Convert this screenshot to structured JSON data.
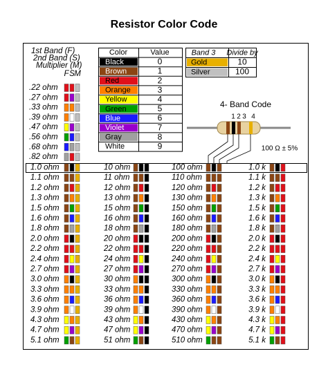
{
  "title": "Resistor Color Code",
  "legend_header": [
    "1st Band (F)",
    "2nd Band (S)",
    "Multiplier (M)"
  ],
  "band_letters": [
    "F",
    "S",
    "M"
  ],
  "small_values": {
    "multiplier_color": "#c0c0c0",
    "rows": [
      {
        "label": ".22 ohm",
        "colors": [
          "#e0101a",
          "#e0101a"
        ]
      },
      {
        "label": ".27 ohm",
        "colors": [
          "#e0101a",
          "#9900cc"
        ]
      },
      {
        "label": ".33 ohm",
        "colors": [
          "#ff8000",
          "#ff8000"
        ]
      },
      {
        "label": ".39 ohm",
        "colors": [
          "#ff8000",
          "#ffffff"
        ]
      },
      {
        "label": ".47 ohm",
        "colors": [
          "#ffff00",
          "#9900cc"
        ]
      },
      {
        "label": ".56 ohm",
        "colors": [
          "#00a000",
          "#1a1aff"
        ]
      },
      {
        "label": ".68 ohm",
        "colors": [
          "#1a1aff",
          "#a0a0a0"
        ]
      },
      {
        "label": ".82 ohm",
        "colors": [
          "#a0a0a0",
          "#e0101a"
        ]
      }
    ]
  },
  "color_table": {
    "headers": [
      "Color",
      "Value"
    ],
    "rows": [
      {
        "name": "Black",
        "value": 0,
        "color": "#000000",
        "text_color": "#ffffff"
      },
      {
        "name": "Brown",
        "value": 1,
        "color": "#8b4513",
        "text_color": "#ffffff"
      },
      {
        "name": "Red",
        "value": 2,
        "color": "#e0101a",
        "text_color": "#000000"
      },
      {
        "name": "Orange",
        "value": 3,
        "color": "#ff8000",
        "text_color": "#000000"
      },
      {
        "name": "Yellow",
        "value": 4,
        "color": "#ffff00",
        "text_color": "#000000"
      },
      {
        "name": "Green",
        "value": 5,
        "color": "#00a000",
        "text_color": "#000000"
      },
      {
        "name": "Blue",
        "value": 6,
        "color": "#1a1aff",
        "text_color": "#ffffff"
      },
      {
        "name": "Violet",
        "value": 7,
        "color": "#9900cc",
        "text_color": "#ffffff"
      },
      {
        "name": "Gray",
        "value": 8,
        "color": "#a0a0a0",
        "text_color": "#000000"
      },
      {
        "name": "White",
        "value": 9,
        "color": "#ffffff",
        "text_color": "#000000"
      }
    ]
  },
  "band3_table": {
    "headers": [
      "Band 3",
      "Divide by"
    ],
    "rows": [
      {
        "name": "Gold",
        "value": 10,
        "color": "#e8b000"
      },
      {
        "name": "Silver",
        "value": 100,
        "color": "#c0c0c0"
      }
    ]
  },
  "diagram": {
    "title": "4- Band Code",
    "band_numbers": [
      1,
      2,
      3,
      4
    ],
    "example": "100 Ω ± 5%"
  },
  "main_table": {
    "digit_colors": [
      [
        "#8b4513",
        "#000000"
      ],
      [
        "#8b4513",
        "#8b4513"
      ],
      [
        "#8b4513",
        "#e0101a"
      ],
      [
        "#8b4513",
        "#ff8000"
      ],
      [
        "#8b4513",
        "#00a000"
      ],
      [
        "#8b4513",
        "#1a1aff"
      ],
      [
        "#8b4513",
        "#a0a0a0"
      ],
      [
        "#e0101a",
        "#000000"
      ],
      [
        "#e0101a",
        "#e0101a"
      ],
      [
        "#e0101a",
        "#ffff00"
      ],
      [
        "#e0101a",
        "#9900cc"
      ],
      [
        "#ff8000",
        "#000000"
      ],
      [
        "#ff8000",
        "#ff8000"
      ],
      [
        "#ff8000",
        "#1a1aff"
      ],
      [
        "#ff8000",
        "#ffffff"
      ],
      [
        "#ffff00",
        "#ff8000"
      ],
      [
        "#ffff00",
        "#9900cc"
      ],
      [
        "#00a000",
        "#8b4513"
      ]
    ],
    "columns": [
      {
        "multiplier_color": "#e8b000",
        "labels": [
          "1.0 ohm",
          "1.1 ohm",
          "1.2 ohm",
          "1.3 ohm",
          "1.5 ohm",
          "1.6 ohm",
          "1.8 ohm",
          "2.0 ohm",
          "2.2 ohm",
          "2.4 ohm",
          "2.7 ohm",
          "3.0 ohm",
          "3.3 ohm",
          "3.6 ohm",
          "3.9 ohm",
          "4.3 ohm",
          "4.7 ohm",
          "5.1 ohm"
        ]
      },
      {
        "multiplier_color": "#000000",
        "labels": [
          "10 ohm",
          "11 ohm",
          "12 ohm",
          "13 ohm",
          "15 ohm",
          "16 ohm",
          "18 ohm",
          "20 ohm",
          "22 ohm",
          "24 ohm",
          "27 ohm",
          "30 ohm",
          "33 ohm",
          "36 ohm",
          "39 ohm",
          "43 ohm",
          "47 ohm",
          "51 ohm"
        ]
      },
      {
        "multiplier_color": "#8b4513",
        "labels": [
          "100 ohm",
          "110 ohm",
          "120 ohm",
          "130 ohm",
          "150 ohm",
          "160 ohm",
          "180 ohm",
          "200 ohm",
          "220 ohm",
          "240 ohm",
          "270 ohm",
          "300 ohm",
          "330 ohm",
          "360 ohm",
          "390 ohm",
          "430 ohm",
          "470 ohm",
          "510 ohm"
        ]
      },
      {
        "multiplier_color": "#e0101a",
        "labels": [
          "1.0 k",
          "1.1 k",
          "1.2 k",
          "1.3 k",
          "1.5 k",
          "1.6 k",
          "1.8 k",
          "2.0 k",
          "2.2 k",
          "2.4 k",
          "2.7 k",
          "3.0 k",
          "3.3 k",
          "3.6 k",
          "3.9 k",
          "4.3 k",
          "4.7 k",
          "5.1 k"
        ]
      }
    ]
  }
}
